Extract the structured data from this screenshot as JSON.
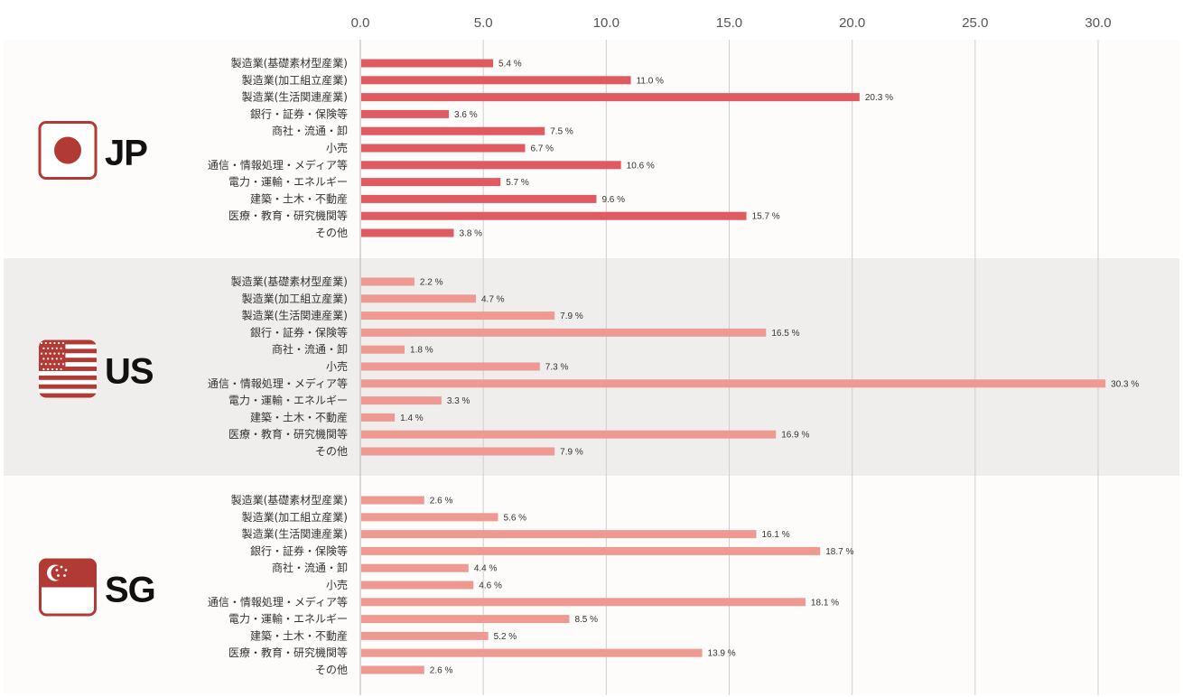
{
  "chart_data": {
    "type": "bar",
    "orientation": "horizontal",
    "xlim": [
      0,
      30
    ],
    "ticks": [
      "0.0",
      "5.0",
      "10.0",
      "15.0",
      "20.0",
      "25.0",
      "30.0"
    ],
    "tick_values": [
      0,
      5,
      10,
      15,
      20,
      25,
      30
    ],
    "value_suffix": " %",
    "grid": true,
    "categories": [
      "製造業(基礎素材型産業)",
      "製造業(加工組立産業)",
      "製造業(生活関連産業)",
      "銀行・証券・保険等",
      "商社・流通・卸",
      "小売",
      "通信・情報処理・メディア等",
      "電力・運輸・エネルギー",
      "建築・土木・不動産",
      "医療・教育・研究機関等",
      "その他"
    ],
    "series": [
      {
        "name": "JP",
        "flag": "japan-flag-icon",
        "color": "#e05a62",
        "band_color": "#fdfcfa",
        "values": [
          5.4,
          11.0,
          20.3,
          3.6,
          7.5,
          6.7,
          10.6,
          5.7,
          9.6,
          15.7,
          3.8
        ]
      },
      {
        "name": "US",
        "flag": "us-flag-icon",
        "color": "#ee9a93",
        "band_color": "#efeeec",
        "values": [
          2.2,
          4.7,
          7.9,
          16.5,
          1.8,
          7.3,
          30.3,
          3.3,
          1.4,
          16.9,
          7.9
        ]
      },
      {
        "name": "SG",
        "flag": "singapore-flag-icon",
        "color": "#ee9a93",
        "band_color": "#fdfcfa",
        "values": [
          2.6,
          5.6,
          16.1,
          18.7,
          4.4,
          4.6,
          18.1,
          8.5,
          5.2,
          13.9,
          2.6
        ]
      }
    ]
  }
}
